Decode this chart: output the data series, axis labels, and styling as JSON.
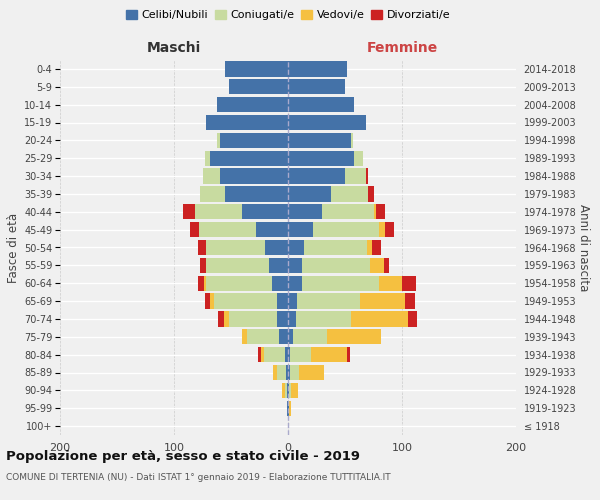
{
  "age_groups": [
    "100+",
    "95-99",
    "90-94",
    "85-89",
    "80-84",
    "75-79",
    "70-74",
    "65-69",
    "60-64",
    "55-59",
    "50-54",
    "45-49",
    "40-44",
    "35-39",
    "30-34",
    "25-29",
    "20-24",
    "15-19",
    "10-14",
    "5-9",
    "0-4"
  ],
  "birth_years": [
    "≤ 1918",
    "1919-1923",
    "1924-1928",
    "1929-1933",
    "1934-1938",
    "1939-1943",
    "1944-1948",
    "1949-1953",
    "1954-1958",
    "1959-1963",
    "1964-1968",
    "1969-1973",
    "1974-1978",
    "1979-1983",
    "1984-1988",
    "1989-1993",
    "1994-1998",
    "1999-2003",
    "2004-2008",
    "2009-2013",
    "2014-2018"
  ],
  "male": {
    "celibi": [
      0,
      1,
      1,
      2,
      3,
      8,
      10,
      10,
      14,
      17,
      20,
      28,
      40,
      55,
      60,
      68,
      60,
      72,
      62,
      52,
      55
    ],
    "coniugati": [
      0,
      0,
      2,
      8,
      18,
      28,
      42,
      55,
      58,
      55,
      52,
      50,
      42,
      22,
      15,
      5,
      2,
      0,
      0,
      0,
      0
    ],
    "vedovi": [
      0,
      0,
      2,
      3,
      3,
      4,
      4,
      3,
      2,
      0,
      0,
      0,
      0,
      0,
      0,
      0,
      0,
      0,
      0,
      0,
      0
    ],
    "divorziati": [
      0,
      0,
      0,
      0,
      2,
      0,
      5,
      5,
      5,
      5,
      7,
      8,
      10,
      0,
      0,
      0,
      0,
      0,
      0,
      0,
      0
    ]
  },
  "female": {
    "nubili": [
      0,
      1,
      1,
      2,
      2,
      4,
      7,
      8,
      12,
      12,
      14,
      22,
      30,
      38,
      50,
      58,
      55,
      68,
      58,
      50,
      52
    ],
    "coniugate": [
      0,
      0,
      2,
      8,
      18,
      30,
      48,
      55,
      68,
      60,
      55,
      58,
      45,
      32,
      18,
      8,
      2,
      0,
      0,
      0,
      0
    ],
    "vedove": [
      0,
      2,
      6,
      22,
      32,
      48,
      50,
      40,
      20,
      12,
      5,
      5,
      2,
      0,
      0,
      0,
      0,
      0,
      0,
      0,
      0
    ],
    "divorziate": [
      0,
      0,
      0,
      0,
      2,
      0,
      8,
      8,
      12,
      5,
      8,
      8,
      8,
      5,
      2,
      0,
      0,
      0,
      0,
      0,
      0
    ]
  },
  "colors": {
    "celibi": "#4472a8",
    "coniugati": "#c8dba0",
    "vedovi": "#f5c040",
    "divorziati": "#cc2222"
  },
  "xlim": 200,
  "title": "Popolazione per età, sesso e stato civile - 2019",
  "subtitle": "COMUNE DI TERTENIA (NU) - Dati ISTAT 1° gennaio 2019 - Elaborazione TUTTITALIA.IT",
  "ylabel_left": "Fasce di età",
  "ylabel_right": "Anni di nascita",
  "xlabel_left": "Maschi",
  "xlabel_right": "Femmine",
  "background_color": "#f0f0f0"
}
